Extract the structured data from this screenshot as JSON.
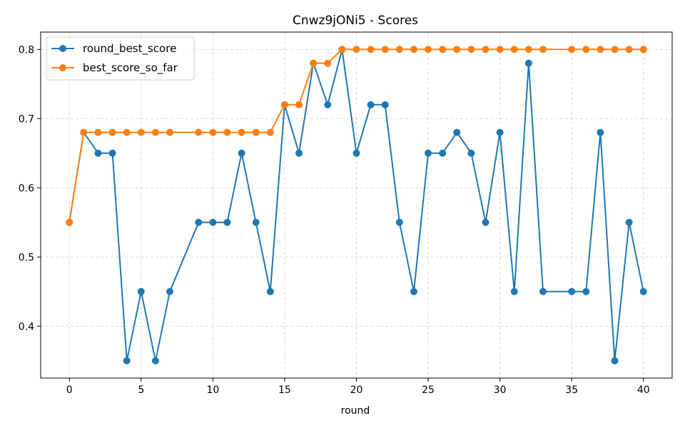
{
  "chart_data": {
    "type": "line",
    "title": "Cnwz9jONi5 - Scores",
    "xlabel": "round",
    "ylabel": "",
    "xlim": [
      -2,
      42
    ],
    "ylim": [
      0.325,
      0.825
    ],
    "xticks": [
      0,
      5,
      10,
      15,
      20,
      25,
      30,
      35,
      40
    ],
    "yticks": [
      0.4,
      0.5,
      0.6,
      0.7,
      0.8
    ],
    "xtick_labels": [
      "0",
      "5",
      "10",
      "15",
      "20",
      "25",
      "30",
      "35",
      "40"
    ],
    "ytick_labels": [
      "0.4",
      "0.5",
      "0.6",
      "0.7",
      "0.8"
    ],
    "grid": true,
    "legend_position": "top-left",
    "series": [
      {
        "name": "round_best_score",
        "color": "#1f77b4",
        "marker": "circle",
        "x": [
          0,
          1,
          2,
          3,
          4,
          5,
          6,
          7,
          9,
          10,
          11,
          12,
          13,
          14,
          15,
          16,
          17,
          18,
          19,
          20,
          21,
          22,
          23,
          24,
          25,
          26,
          27,
          28,
          29,
          30,
          31,
          32,
          33,
          35,
          36,
          37,
          38,
          39,
          40
        ],
        "y": [
          0.55,
          0.68,
          0.65,
          0.65,
          0.35,
          0.45,
          0.35,
          0.45,
          0.55,
          0.55,
          0.55,
          0.65,
          0.55,
          0.45,
          0.72,
          0.65,
          0.78,
          0.72,
          0.8,
          0.65,
          0.72,
          0.72,
          0.55,
          0.45,
          0.65,
          0.65,
          0.68,
          0.65,
          0.55,
          0.68,
          0.45,
          0.78,
          0.45,
          0.45,
          0.45,
          0.68,
          0.35,
          0.55,
          0.45
        ]
      },
      {
        "name": "best_score_so_far",
        "color": "#ff7f0e",
        "marker": "circle",
        "x": [
          0,
          1,
          2,
          3,
          4,
          5,
          6,
          7,
          9,
          10,
          11,
          12,
          13,
          14,
          15,
          16,
          17,
          18,
          19,
          20,
          21,
          22,
          23,
          24,
          25,
          26,
          27,
          28,
          29,
          30,
          31,
          32,
          33,
          35,
          36,
          37,
          38,
          39,
          40
        ],
        "y": [
          0.55,
          0.68,
          0.68,
          0.68,
          0.68,
          0.68,
          0.68,
          0.68,
          0.68,
          0.68,
          0.68,
          0.68,
          0.68,
          0.68,
          0.72,
          0.72,
          0.78,
          0.78,
          0.8,
          0.8,
          0.8,
          0.8,
          0.8,
          0.8,
          0.8,
          0.8,
          0.8,
          0.8,
          0.8,
          0.8,
          0.8,
          0.8,
          0.8,
          0.8,
          0.8,
          0.8,
          0.8,
          0.8,
          0.8
        ]
      }
    ]
  }
}
